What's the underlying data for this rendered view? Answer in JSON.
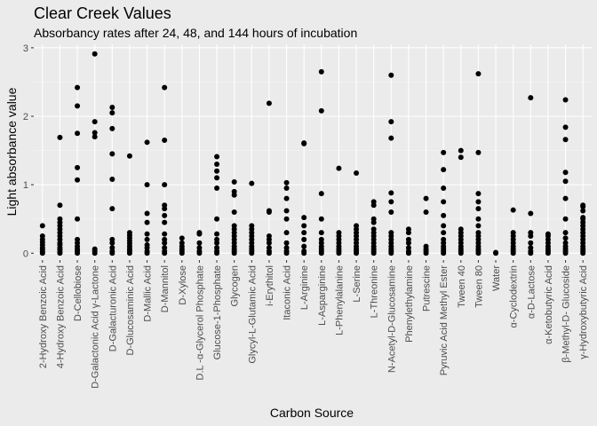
{
  "chart_data": {
    "type": "scatter",
    "title": "Clear Creek Values",
    "subtitle": "Absorbancy rates after 24, 48, and 144 hours of incubation",
    "xlabel": "Carbon Source",
    "ylabel": "Light absorbance value",
    "ylim": [
      -0.1,
      3.05
    ],
    "yticks": [
      0,
      1,
      2,
      3
    ],
    "grid": true,
    "legend": "none",
    "point_color": "#000000",
    "panel_color": "#ebebeb",
    "categories": [
      "2-Hydroxy Benzoic Acid",
      "4-Hydroxy Benzoic Acid",
      "D-Cellobiose",
      "D-Galactonic Acid γ-Lactone",
      "D-Galacturonic Acid",
      "D-Glucosaminic Acid",
      "D-Mallic Acid",
      "D-Mannitol",
      "D-Xylose",
      "D.L -α-Glycerol Phosphate",
      "Glucose-1-Phosphate",
      "Glycogen",
      "Glycyl-L-Glutamic Acid",
      "i-Erythitol",
      "Itaconic Acid",
      "L-Arginine",
      "L-Asparginine",
      "L-Phenylalanine",
      "L-Serine",
      "L-Threonine",
      "N-Acetyl-D-Glucosamine",
      "Phenylethylamine",
      "Putrescine",
      "Pyruvic Acid Methyl Ester",
      "Tween 40",
      "Tween 80",
      "Water",
      "α-Cyclodextrin",
      "α-D-Lactose",
      "α-Ketobutyric Acid",
      "β-Methyl-D- Glucoside",
      "γ-Hydroxybutyric Acid"
    ],
    "values": [
      [
        0.0,
        0.02,
        0.05,
        0.08,
        0.12,
        0.16,
        0.2,
        0.25,
        0.4
      ],
      [
        0.0,
        0.02,
        0.05,
        0.08,
        0.12,
        0.15,
        0.2,
        0.25,
        0.3,
        0.35,
        0.4,
        0.45,
        0.5,
        0.7,
        1.69
      ],
      [
        0.0,
        0.03,
        0.06,
        0.1,
        0.15,
        0.2,
        0.5,
        1.07,
        1.25,
        1.75,
        2.15,
        2.42
      ],
      [
        0.0,
        0.03,
        0.06,
        1.7,
        1.76,
        1.92,
        2.91
      ],
      [
        0.0,
        0.03,
        0.08,
        0.15,
        0.2,
        0.65,
        1.08,
        1.45,
        1.82,
        2.05,
        2.13
      ],
      [
        0.0,
        0.03,
        0.06,
        0.1,
        0.14,
        0.18,
        0.22,
        0.26,
        0.3,
        1.42
      ],
      [
        0.0,
        0.03,
        0.08,
        0.12,
        0.2,
        0.28,
        0.45,
        0.58,
        1.0,
        1.62
      ],
      [
        0.0,
        0.03,
        0.08,
        0.15,
        0.2,
        0.28,
        0.45,
        0.55,
        0.65,
        0.7,
        1.0,
        1.65,
        2.42
      ],
      [
        0.0,
        0.03,
        0.06,
        0.1,
        0.15,
        0.22
      ],
      [
        0.0,
        0.03,
        0.08,
        0.15,
        0.28,
        0.3
      ],
      [
        0.0,
        0.03,
        0.08,
        0.15,
        0.2,
        0.28,
        0.5,
        0.95,
        1.1,
        1.2,
        1.3,
        1.41
      ],
      [
        0.0,
        0.03,
        0.06,
        0.1,
        0.15,
        0.2,
        0.25,
        0.3,
        0.35,
        0.4,
        0.6,
        0.85,
        0.9,
        1.04
      ],
      [
        0.0,
        0.03,
        0.06,
        0.1,
        0.15,
        0.2,
        0.25,
        0.3,
        0.35,
        0.4,
        1.02
      ],
      [
        0.0,
        0.03,
        0.08,
        0.15,
        0.2,
        0.25,
        0.6,
        0.62,
        2.19
      ],
      [
        0.0,
        0.03,
        0.08,
        0.15,
        0.3,
        0.5,
        0.62,
        0.8,
        0.95,
        1.03
      ],
      [
        0.0,
        0.03,
        0.1,
        0.2,
        0.3,
        0.4,
        0.52,
        1.6,
        1.61
      ],
      [
        0.0,
        0.03,
        0.06,
        0.1,
        0.15,
        0.2,
        0.3,
        0.5,
        0.87,
        2.08,
        2.65
      ],
      [
        0.0,
        0.03,
        0.06,
        0.1,
        0.15,
        0.2,
        0.25,
        0.3,
        1.24
      ],
      [
        0.0,
        0.03,
        0.06,
        0.1,
        0.15,
        0.2,
        0.25,
        0.3,
        0.35,
        0.4,
        1.17
      ],
      [
        0.0,
        0.03,
        0.06,
        0.1,
        0.15,
        0.2,
        0.25,
        0.3,
        0.35,
        0.45,
        0.5,
        0.7,
        0.75
      ],
      [
        0.0,
        0.03,
        0.06,
        0.1,
        0.15,
        0.2,
        0.25,
        0.3,
        0.6,
        0.75,
        0.88,
        1.68,
        1.92,
        2.6
      ],
      [
        0.0,
        0.03,
        0.08,
        0.15,
        0.2,
        0.3,
        0.35
      ],
      [
        0.0,
        0.03,
        0.06,
        0.1,
        0.6,
        0.8
      ],
      [
        0.0,
        0.03,
        0.06,
        0.1,
        0.15,
        0.2,
        0.3,
        0.4,
        0.55,
        0.75,
        0.95,
        1.22,
        1.47
      ],
      [
        0.0,
        0.03,
        0.06,
        0.1,
        0.15,
        0.2,
        0.25,
        0.3,
        0.35,
        1.4,
        1.5
      ],
      [
        0.0,
        0.03,
        0.06,
        0.1,
        0.15,
        0.2,
        0.25,
        0.3,
        0.4,
        0.5,
        0.65,
        0.75,
        0.87,
        1.47,
        2.62
      ],
      [
        0.0,
        0.01
      ],
      [
        0.0,
        0.03,
        0.06,
        0.1,
        0.15,
        0.2,
        0.25,
        0.3,
        0.63
      ],
      [
        0.0,
        0.03,
        0.08,
        0.15,
        0.25,
        0.3,
        0.58,
        2.27
      ],
      [
        0.0,
        0.03,
        0.06,
        0.1,
        0.15,
        0.2,
        0.25,
        0.28
      ],
      [
        0.0,
        0.03,
        0.06,
        0.1,
        0.15,
        0.22,
        0.3,
        0.5,
        0.8,
        1.05,
        1.18,
        1.66,
        1.84,
        2.24
      ],
      [
        0.0,
        0.03,
        0.06,
        0.1,
        0.15,
        0.2,
        0.25,
        0.3,
        0.35,
        0.4,
        0.45,
        0.5,
        0.52,
        0.62,
        0.68,
        0.7
      ]
    ]
  }
}
